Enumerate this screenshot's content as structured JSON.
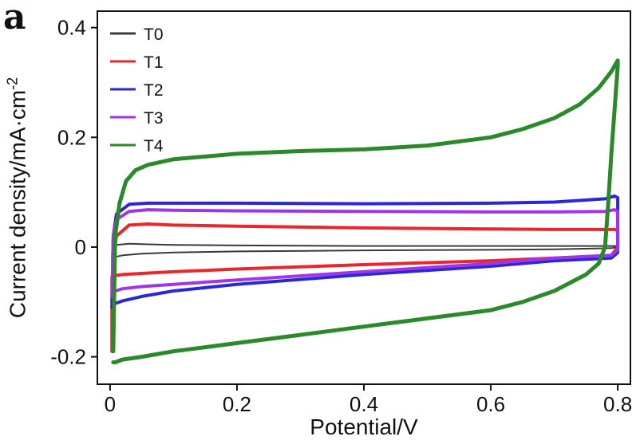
{
  "panel_label": "a",
  "chart_data": {
    "type": "line",
    "xlabel": "Potential/V",
    "ylabel": "Current density/mA·cm",
    "ylabel_sup": "-2",
    "xlim": [
      -0.02,
      0.82
    ],
    "ylim": [
      -0.25,
      0.43
    ],
    "xticks": [
      0,
      0.2,
      0.4,
      0.6,
      0.8
    ],
    "xtick_labels": [
      "0",
      "0.2",
      "0.4",
      "0.6",
      "0.8"
    ],
    "yticks": [
      -0.2,
      0,
      0.2,
      0.4
    ],
    "ytick_labels": [
      "-0.2",
      "0",
      "0.2",
      "0.4"
    ],
    "grid": false,
    "legend_position": "top-left",
    "series": [
      {
        "name": "T0",
        "color": "#3a3a3a",
        "x": [
          0.003,
          0.005,
          0.01,
          0.03,
          0.06,
          0.1,
          0.2,
          0.4,
          0.6,
          0.7,
          0.78,
          0.795,
          0.8,
          0.8,
          0.79,
          0.7,
          0.6,
          0.4,
          0.2,
          0.1,
          0.05,
          0.02,
          0.008,
          0.003,
          0.003
        ],
        "y": [
          -0.01,
          0.0,
          0.004,
          0.006,
          0.005,
          0.004,
          0.003,
          0.002,
          0.002,
          0.002,
          0.002,
          0.002,
          0.002,
          0.0,
          -0.002,
          -0.004,
          -0.005,
          -0.006,
          -0.008,
          -0.01,
          -0.012,
          -0.015,
          -0.018,
          -0.022,
          -0.01
        ]
      },
      {
        "name": "T1",
        "color": "#e8262b",
        "x": [
          0.003,
          0.005,
          0.01,
          0.03,
          0.06,
          0.1,
          0.2,
          0.4,
          0.6,
          0.7,
          0.78,
          0.795,
          0.8,
          0.8,
          0.79,
          0.7,
          0.6,
          0.4,
          0.2,
          0.1,
          0.05,
          0.02,
          0.008,
          0.003,
          0.003
        ],
        "y": [
          -0.19,
          -0.02,
          0.02,
          0.04,
          0.042,
          0.04,
          0.038,
          0.035,
          0.033,
          0.032,
          0.032,
          0.032,
          0.03,
          0.0,
          -0.015,
          -0.02,
          -0.025,
          -0.032,
          -0.04,
          -0.045,
          -0.048,
          -0.05,
          -0.052,
          -0.055,
          -0.19
        ]
      },
      {
        "name": "T2",
        "color": "#2828d8",
        "x": [
          0.003,
          0.005,
          0.01,
          0.03,
          0.06,
          0.1,
          0.2,
          0.4,
          0.6,
          0.7,
          0.78,
          0.795,
          0.8,
          0.8,
          0.79,
          0.7,
          0.6,
          0.4,
          0.2,
          0.1,
          0.05,
          0.02,
          0.008,
          0.003,
          0.003
        ],
        "y": [
          -0.11,
          0.02,
          0.06,
          0.078,
          0.08,
          0.08,
          0.08,
          0.079,
          0.08,
          0.082,
          0.088,
          0.093,
          0.09,
          -0.01,
          -0.02,
          -0.025,
          -0.035,
          -0.05,
          -0.068,
          -0.08,
          -0.09,
          -0.098,
          -0.103,
          -0.108,
          -0.11
        ]
      },
      {
        "name": "T3",
        "color": "#a035e8",
        "x": [
          0.003,
          0.005,
          0.01,
          0.03,
          0.06,
          0.1,
          0.2,
          0.4,
          0.6,
          0.7,
          0.78,
          0.795,
          0.8,
          0.8,
          0.79,
          0.7,
          0.6,
          0.4,
          0.2,
          0.1,
          0.05,
          0.02,
          0.008,
          0.003,
          0.003
        ],
        "y": [
          -0.09,
          0.02,
          0.05,
          0.065,
          0.068,
          0.067,
          0.066,
          0.065,
          0.064,
          0.064,
          0.065,
          0.068,
          0.065,
          -0.005,
          -0.015,
          -0.02,
          -0.03,
          -0.045,
          -0.06,
          -0.068,
          -0.072,
          -0.076,
          -0.08,
          -0.085,
          -0.09
        ]
      },
      {
        "name": "T4",
        "color": "#2a8a2a",
        "x": [
          0.005,
          0.008,
          0.015,
          0.025,
          0.04,
          0.06,
          0.1,
          0.2,
          0.3,
          0.4,
          0.5,
          0.6,
          0.65,
          0.7,
          0.74,
          0.77,
          0.79,
          0.8,
          0.8,
          0.795,
          0.79,
          0.785,
          0.78,
          0.77,
          0.75,
          0.7,
          0.65,
          0.6,
          0.5,
          0.4,
          0.3,
          0.2,
          0.1,
          0.05,
          0.02,
          0.008,
          0.005
        ],
        "y": [
          -0.19,
          0.02,
          0.08,
          0.12,
          0.14,
          0.15,
          0.16,
          0.17,
          0.175,
          0.178,
          0.185,
          0.2,
          0.215,
          0.235,
          0.26,
          0.29,
          0.32,
          0.34,
          0.33,
          0.25,
          0.17,
          0.08,
          0.0,
          -0.03,
          -0.05,
          -0.08,
          -0.1,
          -0.115,
          -0.13,
          -0.145,
          -0.16,
          -0.175,
          -0.19,
          -0.2,
          -0.205,
          -0.21,
          -0.21
        ]
      }
    ]
  }
}
